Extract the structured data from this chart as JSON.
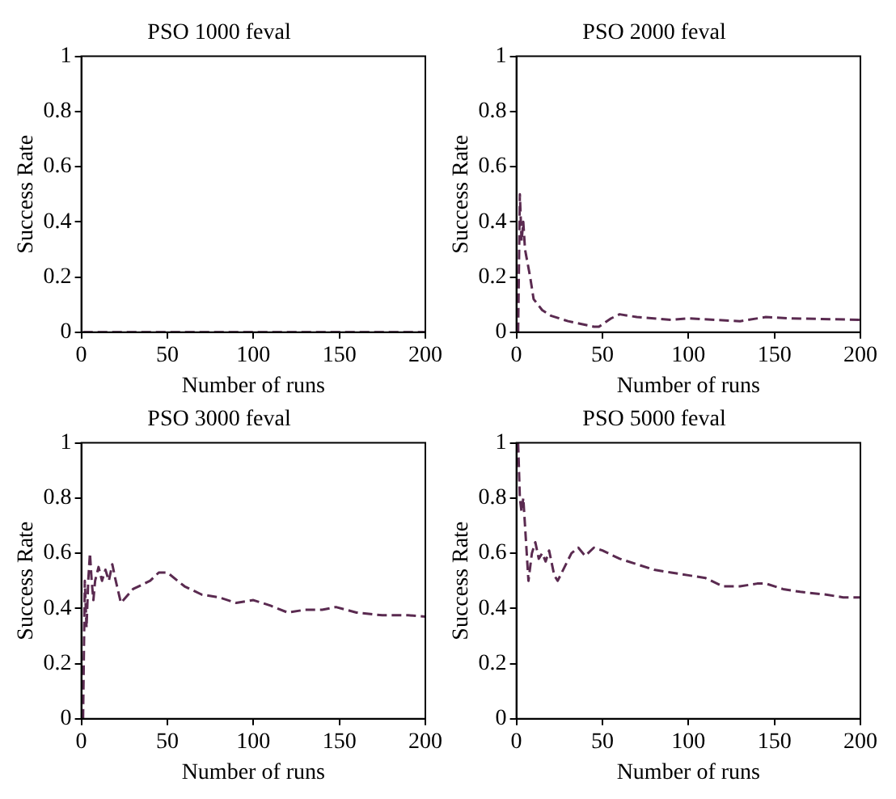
{
  "chart_data": [
    {
      "type": "line",
      "title": "PSO 1000 feval",
      "xlabel": "Number of runs",
      "ylabel": "Success Rate",
      "xlim": [
        0,
        200
      ],
      "xticks": [
        0,
        50,
        100,
        150,
        200
      ],
      "ylim": [
        0,
        1
      ],
      "yticks": [
        0,
        0.2,
        0.4,
        0.6,
        0.8,
        1
      ],
      "grid": false,
      "legend": false,
      "line_style": "dashed",
      "marker": "none",
      "series": [
        {
          "color": "#5a2a50",
          "x": [
            1,
            200
          ],
          "values": [
            0,
            0
          ]
        }
      ]
    },
    {
      "type": "line",
      "title": "PSO 2000 feval",
      "xlabel": "Number of runs",
      "ylabel": "Success Rate",
      "xlim": [
        0,
        200
      ],
      "xticks": [
        0,
        50,
        100,
        150,
        200
      ],
      "ylim": [
        0,
        1
      ],
      "yticks": [
        0,
        0.2,
        0.4,
        0.6,
        0.8,
        1
      ],
      "grid": false,
      "legend": false,
      "line_style": "dashed",
      "marker": "none",
      "series": [
        {
          "color": "#5a2a50",
          "x": [
            1,
            2,
            3,
            4,
            5,
            8,
            10,
            15,
            20,
            30,
            45,
            48,
            55,
            60,
            70,
            90,
            100,
            130,
            145,
            160,
            200
          ],
          "values": [
            0,
            0.5,
            0.33,
            0.4,
            0.3,
            0.2,
            0.12,
            0.08,
            0.06,
            0.04,
            0.02,
            0.02,
            0.05,
            0.065,
            0.055,
            0.045,
            0.05,
            0.04,
            0.055,
            0.05,
            0.045
          ]
        }
      ]
    },
    {
      "type": "line",
      "title": "PSO 3000 feval",
      "xlabel": "Number of runs",
      "ylabel": "Success Rate",
      "xlim": [
        0,
        200
      ],
      "xticks": [
        0,
        50,
        100,
        150,
        200
      ],
      "ylim": [
        0,
        1
      ],
      "yticks": [
        0,
        0.2,
        0.4,
        0.6,
        0.8,
        1
      ],
      "grid": false,
      "legend": false,
      "line_style": "dashed",
      "marker": "none",
      "series": [
        {
          "color": "#5a2a50",
          "x": [
            1,
            2,
            3,
            4,
            5,
            6,
            7,
            8,
            10,
            12,
            14,
            16,
            18,
            20,
            23,
            30,
            40,
            45,
            50,
            60,
            70,
            80,
            90,
            100,
            110,
            120,
            130,
            140,
            148,
            160,
            175,
            190,
            200
          ],
          "values": [
            0,
            0.5,
            0.33,
            0.5,
            0.6,
            0.5,
            0.43,
            0.5,
            0.55,
            0.5,
            0.54,
            0.5,
            0.56,
            0.5,
            0.42,
            0.47,
            0.5,
            0.53,
            0.53,
            0.48,
            0.45,
            0.44,
            0.42,
            0.43,
            0.41,
            0.385,
            0.395,
            0.395,
            0.405,
            0.385,
            0.375,
            0.375,
            0.37
          ]
        }
      ]
    },
    {
      "type": "line",
      "title": "PSO 5000 feval",
      "xlabel": "Number of runs",
      "ylabel": "Success Rate",
      "xlim": [
        0,
        200
      ],
      "xticks": [
        0,
        50,
        100,
        150,
        200
      ],
      "ylim": [
        0,
        1
      ],
      "yticks": [
        0,
        0.2,
        0.4,
        0.6,
        0.8,
        1
      ],
      "grid": false,
      "legend": false,
      "line_style": "dashed",
      "marker": "none",
      "series": [
        {
          "color": "#5a2a50",
          "x": [
            1,
            2,
            3,
            4,
            5,
            7,
            9,
            11,
            13,
            15,
            17,
            19,
            22,
            24,
            28,
            32,
            36,
            40,
            45,
            50,
            60,
            70,
            80,
            90,
            100,
            110,
            120,
            130,
            140,
            145,
            155,
            165,
            180,
            190,
            200
          ],
          "values": [
            1,
            0.8,
            0.75,
            0.8,
            0.7,
            0.5,
            0.6,
            0.64,
            0.58,
            0.6,
            0.57,
            0.61,
            0.52,
            0.5,
            0.55,
            0.6,
            0.62,
            0.59,
            0.62,
            0.61,
            0.58,
            0.56,
            0.54,
            0.53,
            0.52,
            0.51,
            0.48,
            0.48,
            0.49,
            0.49,
            0.47,
            0.46,
            0.45,
            0.44,
            0.44
          ]
        }
      ]
    }
  ]
}
